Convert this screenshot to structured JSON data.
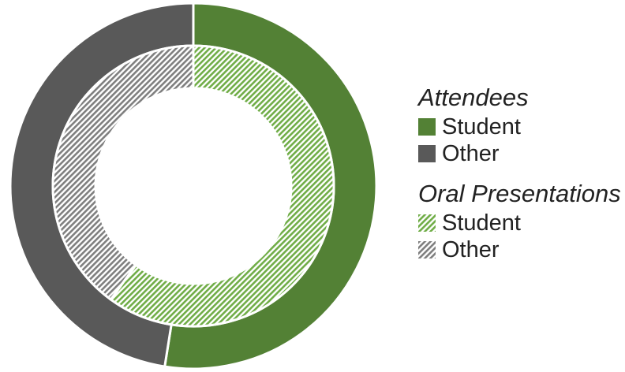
{
  "chart_data": {
    "type": "donut",
    "title": "",
    "series": [
      {
        "name": "Attendees",
        "ring": "outer",
        "fill": "solid",
        "slices": [
          {
            "label": "Student",
            "value": 52.5,
            "color": "#538135"
          },
          {
            "label": "Other",
            "value": 47.5,
            "color": "#595959"
          }
        ]
      },
      {
        "name": "Oral Presentations",
        "ring": "inner",
        "fill": "hatched",
        "slices": [
          {
            "label": "Student",
            "value": 60,
            "color": "#70AD47"
          },
          {
            "label": "Other",
            "value": 40,
            "color": "#7F7F7F"
          }
        ]
      }
    ],
    "legend_position": "right"
  },
  "legend": {
    "groups": [
      {
        "title": "Attendees",
        "items": [
          "Student",
          "Other"
        ]
      },
      {
        "title": "Oral Presentations",
        "items": [
          "Student",
          "Other"
        ]
      }
    ]
  }
}
